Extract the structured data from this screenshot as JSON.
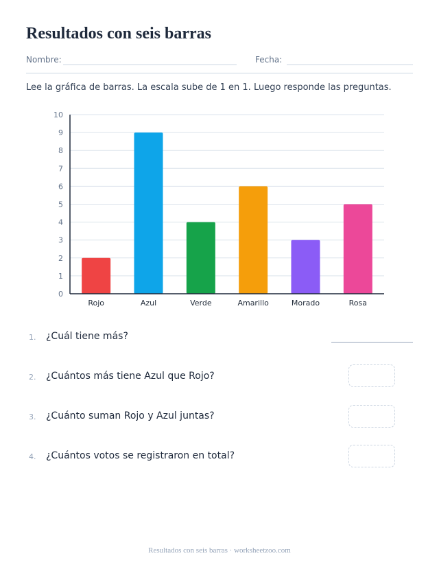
{
  "header": {
    "title": "Resultados con seis barras",
    "name_label": "Nombre:",
    "date_label": "Fecha:"
  },
  "instructions": "Lee la gráfica de barras. La escala sube de 1 en 1. Luego responde las preguntas.",
  "chart_data": {
    "type": "bar",
    "categories": [
      "Rojo",
      "Azul",
      "Verde",
      "Amarillo",
      "Morado",
      "Rosa"
    ],
    "values": [
      2,
      9,
      4,
      6,
      3,
      5
    ],
    "colors": [
      "#ef4444",
      "#0ea5e9",
      "#16a34a",
      "#f59e0b",
      "#8b5cf6",
      "#ec4899"
    ],
    "ylim": [
      0,
      10
    ],
    "yticks": [
      0,
      1,
      2,
      3,
      4,
      5,
      6,
      7,
      8,
      9,
      10
    ],
    "grid": true,
    "title": "",
    "xlabel": "",
    "ylabel": ""
  },
  "questions": [
    {
      "number": "1.",
      "text": "¿Cuál tiene más?"
    },
    {
      "number": "2.",
      "text": "¿Cuántos más tiene Azul que Rojo?"
    },
    {
      "number": "3.",
      "text": "¿Cuánto suman Rojo y Azul juntas?"
    },
    {
      "number": "4.",
      "text": "¿Cuántos votos se registraron en total?"
    }
  ],
  "footer": "Resultados con seis barras · worksheetzoo.com"
}
